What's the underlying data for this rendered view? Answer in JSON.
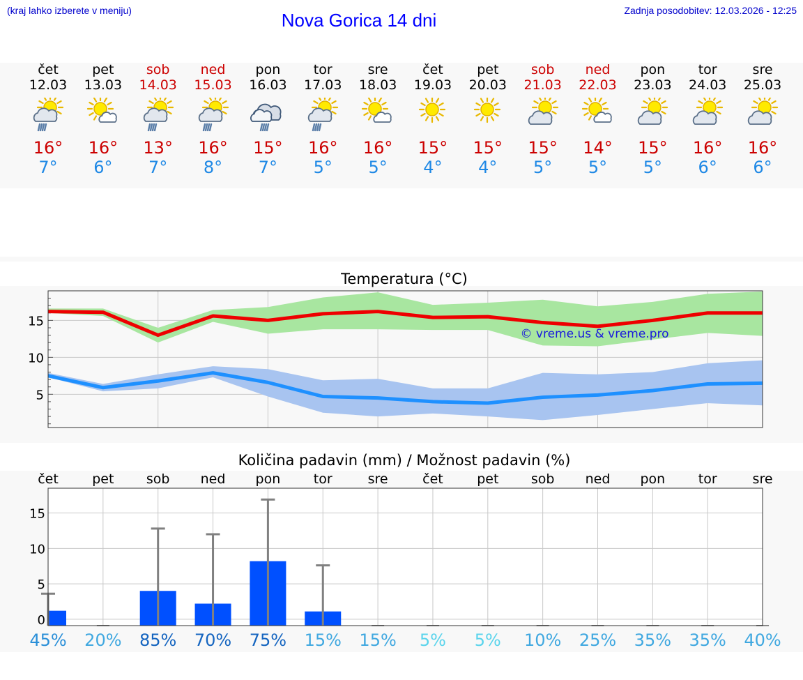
{
  "header": {
    "menu_hint": "(kraj lahko izberete v meniju)",
    "title": "Nova Gorica 14 dni",
    "updated": "Zadnja posodobitev: 12.03.2026 - 12:25"
  },
  "days": [
    {
      "name": "čet",
      "date": "12.03",
      "weekend": false,
      "icon": "sun-cloud-rain-icon",
      "max": "16°",
      "min": "7°"
    },
    {
      "name": "pet",
      "date": "13.03",
      "weekend": false,
      "icon": "sun-small-cloud-icon",
      "max": "16°",
      "min": "6°"
    },
    {
      "name": "sob",
      "date": "14.03",
      "weekend": true,
      "icon": "sun-cloud-rain-icon",
      "max": "13°",
      "min": "7°"
    },
    {
      "name": "ned",
      "date": "15.03",
      "weekend": true,
      "icon": "sun-cloud-rain-icon",
      "max": "16°",
      "min": "8°"
    },
    {
      "name": "pon",
      "date": "16.03",
      "weekend": false,
      "icon": "cloud-rain-icon",
      "max": "15°",
      "min": "7°"
    },
    {
      "name": "tor",
      "date": "17.03",
      "weekend": false,
      "icon": "sun-cloud-rain-icon",
      "max": "16°",
      "min": "5°"
    },
    {
      "name": "sre",
      "date": "18.03",
      "weekend": false,
      "icon": "sun-small-cloud-icon",
      "max": "16°",
      "min": "5°"
    },
    {
      "name": "čet",
      "date": "19.03",
      "weekend": false,
      "icon": "sun-icon",
      "max": "15°",
      "min": "4°"
    },
    {
      "name": "pet",
      "date": "20.03",
      "weekend": false,
      "icon": "sun-icon",
      "max": "15°",
      "min": "4°"
    },
    {
      "name": "sob",
      "date": "21.03",
      "weekend": true,
      "icon": "sun-cloud-icon",
      "max": "15°",
      "min": "5°"
    },
    {
      "name": "ned",
      "date": "22.03",
      "weekend": true,
      "icon": "sun-small-cloud-icon",
      "max": "14°",
      "min": "5°"
    },
    {
      "name": "pon",
      "date": "23.03",
      "weekend": false,
      "icon": "sun-cloud-icon",
      "max": "15°",
      "min": "5°"
    },
    {
      "name": "tor",
      "date": "24.03",
      "weekend": false,
      "icon": "sun-cloud-icon",
      "max": "16°",
      "min": "6°"
    },
    {
      "name": "sre",
      "date": "25.03",
      "weekend": false,
      "icon": "sun-cloud-icon",
      "max": "16°",
      "min": "6°"
    }
  ],
  "colors": {
    "max_line": "#ee0000",
    "max_band": "#a8e6a0",
    "min_line": "#1e90ff",
    "min_band": "#a8c4f0",
    "bar": "#0050ff",
    "weekend": "#cc0000",
    "title": "#0000ff"
  },
  "chart_data": [
    {
      "type": "line",
      "title": "Temperatura (°C)",
      "watermark": "© vreme.us & vreme.pro",
      "ylim": [
        0.5,
        19
      ],
      "yticks": [
        5,
        10,
        15
      ],
      "x": [
        0,
        1,
        2,
        3,
        4,
        5,
        6,
        7,
        8,
        9,
        10,
        11,
        12,
        13
      ],
      "series": [
        {
          "name": "max",
          "values": [
            16.2,
            16.1,
            13.0,
            15.6,
            15.0,
            15.9,
            16.2,
            15.4,
            15.5,
            14.7,
            14.2,
            15.0,
            16.0,
            16.0
          ],
          "band_high": [
            16.6,
            16.6,
            14.0,
            16.4,
            16.8,
            18.1,
            18.8,
            17.1,
            17.4,
            17.8,
            16.9,
            17.5,
            18.6,
            18.9
          ],
          "band_low": [
            16.0,
            15.6,
            12.0,
            14.8,
            13.2,
            13.8,
            13.8,
            13.7,
            13.7,
            11.6,
            11.5,
            12.4,
            13.3,
            12.9
          ]
        },
        {
          "name": "min",
          "values": [
            7.5,
            5.9,
            6.8,
            7.9,
            6.6,
            4.7,
            4.5,
            4.0,
            3.8,
            4.6,
            4.9,
            5.5,
            6.4,
            6.5
          ],
          "band_high": [
            7.9,
            6.4,
            7.7,
            8.8,
            8.4,
            6.9,
            7.1,
            5.8,
            5.8,
            7.9,
            7.7,
            8.0,
            9.2,
            9.6
          ],
          "band_low": [
            7.3,
            5.4,
            5.8,
            7.3,
            4.7,
            2.5,
            2.0,
            2.4,
            2.0,
            1.5,
            2.2,
            3.0,
            3.8,
            3.5
          ]
        }
      ]
    },
    {
      "type": "bar",
      "title": "Količina padavin (mm) / Možnost padavin (%)",
      "categories": [
        "čet",
        "pet",
        "sob",
        "ned",
        "pon",
        "tor",
        "sre",
        "čet",
        "pet",
        "sob",
        "ned",
        "pon",
        "tor",
        "sre"
      ],
      "ylim": [
        -0.9,
        18.5
      ],
      "yticks": [
        0,
        5,
        10,
        15
      ],
      "values": [
        1.2,
        0,
        4.0,
        2.2,
        8.2,
        1.1,
        0,
        0,
        0,
        0,
        0,
        0,
        0,
        0
      ],
      "error_high": [
        3.6,
        0,
        12.8,
        12.0,
        16.9,
        7.6,
        0,
        0,
        0,
        0,
        0,
        0,
        0,
        0
      ],
      "probability": [
        "45%",
        "20%",
        "85%",
        "70%",
        "75%",
        "15%",
        "15%",
        "5%",
        "5%",
        "10%",
        "25%",
        "35%",
        "35%",
        "40%"
      ],
      "probability_values": [
        45,
        20,
        85,
        70,
        75,
        15,
        15,
        5,
        5,
        10,
        25,
        35,
        35,
        40
      ]
    }
  ]
}
